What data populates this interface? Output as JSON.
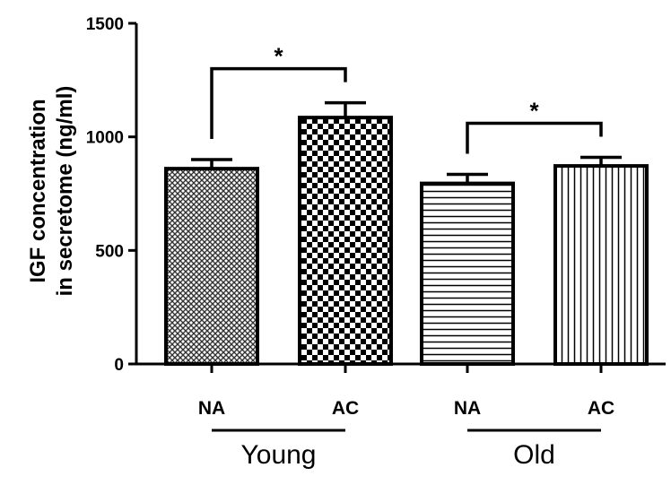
{
  "chart_data": {
    "type": "bar",
    "ylabel_lines": [
      "IGF concentration",
      "in secretome (ng/ml)"
    ],
    "ylim": [
      0,
      1500
    ],
    "yticks": [
      "0",
      "500",
      "1000",
      "1500"
    ],
    "categories": [
      "NA",
      "AC",
      "NA",
      "AC"
    ],
    "groups": [
      {
        "label": "Young",
        "bars": [
          0,
          1
        ]
      },
      {
        "label": "Old",
        "bars": [
          2,
          3
        ]
      }
    ],
    "values": [
      860,
      1085,
      795,
      872
    ],
    "errors": [
      40,
      65,
      40,
      38
    ],
    "patterns": [
      "fine-crosshatch",
      "checkerboard",
      "horizontal-lines",
      "vertical-lines"
    ],
    "significance": [
      {
        "bars": [
          0,
          1
        ],
        "label": "*"
      },
      {
        "bars": [
          2,
          3
        ],
        "label": "*"
      }
    ],
    "legend": "none",
    "grid": false
  }
}
